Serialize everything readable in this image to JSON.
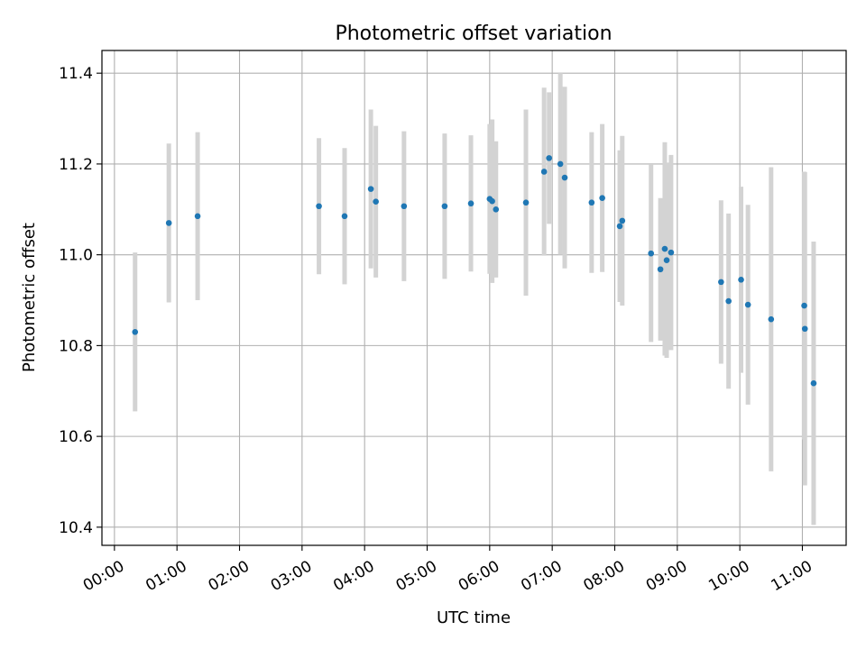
{
  "chart_data": {
    "type": "scatter",
    "title": "Photometric offset variation",
    "xlabel": "UTC time",
    "ylabel": "Photometric offset",
    "x_unit": "hours UTC",
    "xlim": [
      -0.2,
      11.7
    ],
    "ylim": [
      10.36,
      11.45
    ],
    "grid": true,
    "point_color": "#1f77b4",
    "errorbar_color": "#d3d3d3",
    "x_ticks": [
      {
        "value": 0,
        "label": "00:00"
      },
      {
        "value": 1,
        "label": "01:00"
      },
      {
        "value": 2,
        "label": "02:00"
      },
      {
        "value": 3,
        "label": "03:00"
      },
      {
        "value": 4,
        "label": "04:00"
      },
      {
        "value": 5,
        "label": "05:00"
      },
      {
        "value": 6,
        "label": "06:00"
      },
      {
        "value": 7,
        "label": "07:00"
      },
      {
        "value": 8,
        "label": "08:00"
      },
      {
        "value": 9,
        "label": "09:00"
      },
      {
        "value": 10,
        "label": "10:00"
      },
      {
        "value": 11,
        "label": "11:00"
      }
    ],
    "y_ticks": [
      {
        "value": 10.4,
        "label": "10.4"
      },
      {
        "value": 10.6,
        "label": "10.6"
      },
      {
        "value": 10.8,
        "label": "10.8"
      },
      {
        "value": 11.0,
        "label": "11.0"
      },
      {
        "value": 11.2,
        "label": "11.2"
      },
      {
        "value": 11.4,
        "label": "11.4"
      }
    ],
    "points": [
      {
        "x": 0.33,
        "y": 10.83,
        "err": 0.175
      },
      {
        "x": 0.87,
        "y": 11.07,
        "err": 0.175
      },
      {
        "x": 1.33,
        "y": 11.085,
        "err": 0.185
      },
      {
        "x": 3.27,
        "y": 11.107,
        "err": 0.15
      },
      {
        "x": 3.68,
        "y": 11.085,
        "err": 0.15
      },
      {
        "x": 4.1,
        "y": 11.145,
        "err": 0.175
      },
      {
        "x": 4.18,
        "y": 11.117,
        "err": 0.167
      },
      {
        "x": 4.63,
        "y": 11.107,
        "err": 0.165
      },
      {
        "x": 5.28,
        "y": 11.107,
        "err": 0.16
      },
      {
        "x": 5.7,
        "y": 11.113,
        "err": 0.15
      },
      {
        "x": 6.0,
        "y": 11.123,
        "err": 0.165
      },
      {
        "x": 6.04,
        "y": 11.118,
        "err": 0.18
      },
      {
        "x": 6.1,
        "y": 11.1,
        "err": 0.15
      },
      {
        "x": 6.58,
        "y": 11.115,
        "err": 0.205
      },
      {
        "x": 6.87,
        "y": 11.183,
        "err": 0.185
      },
      {
        "x": 6.95,
        "y": 11.213,
        "err": 0.145
      },
      {
        "x": 7.13,
        "y": 11.2,
        "err": 0.2
      },
      {
        "x": 7.2,
        "y": 11.17,
        "err": 0.2
      },
      {
        "x": 7.63,
        "y": 11.115,
        "err": 0.155
      },
      {
        "x": 7.8,
        "y": 11.125,
        "err": 0.163
      },
      {
        "x": 8.08,
        "y": 11.063,
        "err": 0.167
      },
      {
        "x": 8.12,
        "y": 11.075,
        "err": 0.187
      },
      {
        "x": 8.58,
        "y": 11.003,
        "err": 0.195
      },
      {
        "x": 8.73,
        "y": 10.968,
        "err": 0.157
      },
      {
        "x": 8.8,
        "y": 11.013,
        "err": 0.235
      },
      {
        "x": 8.83,
        "y": 10.988,
        "err": 0.215
      },
      {
        "x": 8.9,
        "y": 11.005,
        "err": 0.215
      },
      {
        "x": 9.7,
        "y": 10.94,
        "err": 0.18
      },
      {
        "x": 9.82,
        "y": 10.898,
        "err": 0.193
      },
      {
        "x": 10.02,
        "y": 10.945,
        "err": 0.205
      },
      {
        "x": 10.13,
        "y": 10.89,
        "err": 0.22
      },
      {
        "x": 10.5,
        "y": 10.858,
        "err": 0.335
      },
      {
        "x": 11.03,
        "y": 10.888,
        "err": 0.295
      },
      {
        "x": 11.04,
        "y": 10.837,
        "err": 0.345
      },
      {
        "x": 11.18,
        "y": 10.717,
        "err": 0.312
      }
    ]
  }
}
